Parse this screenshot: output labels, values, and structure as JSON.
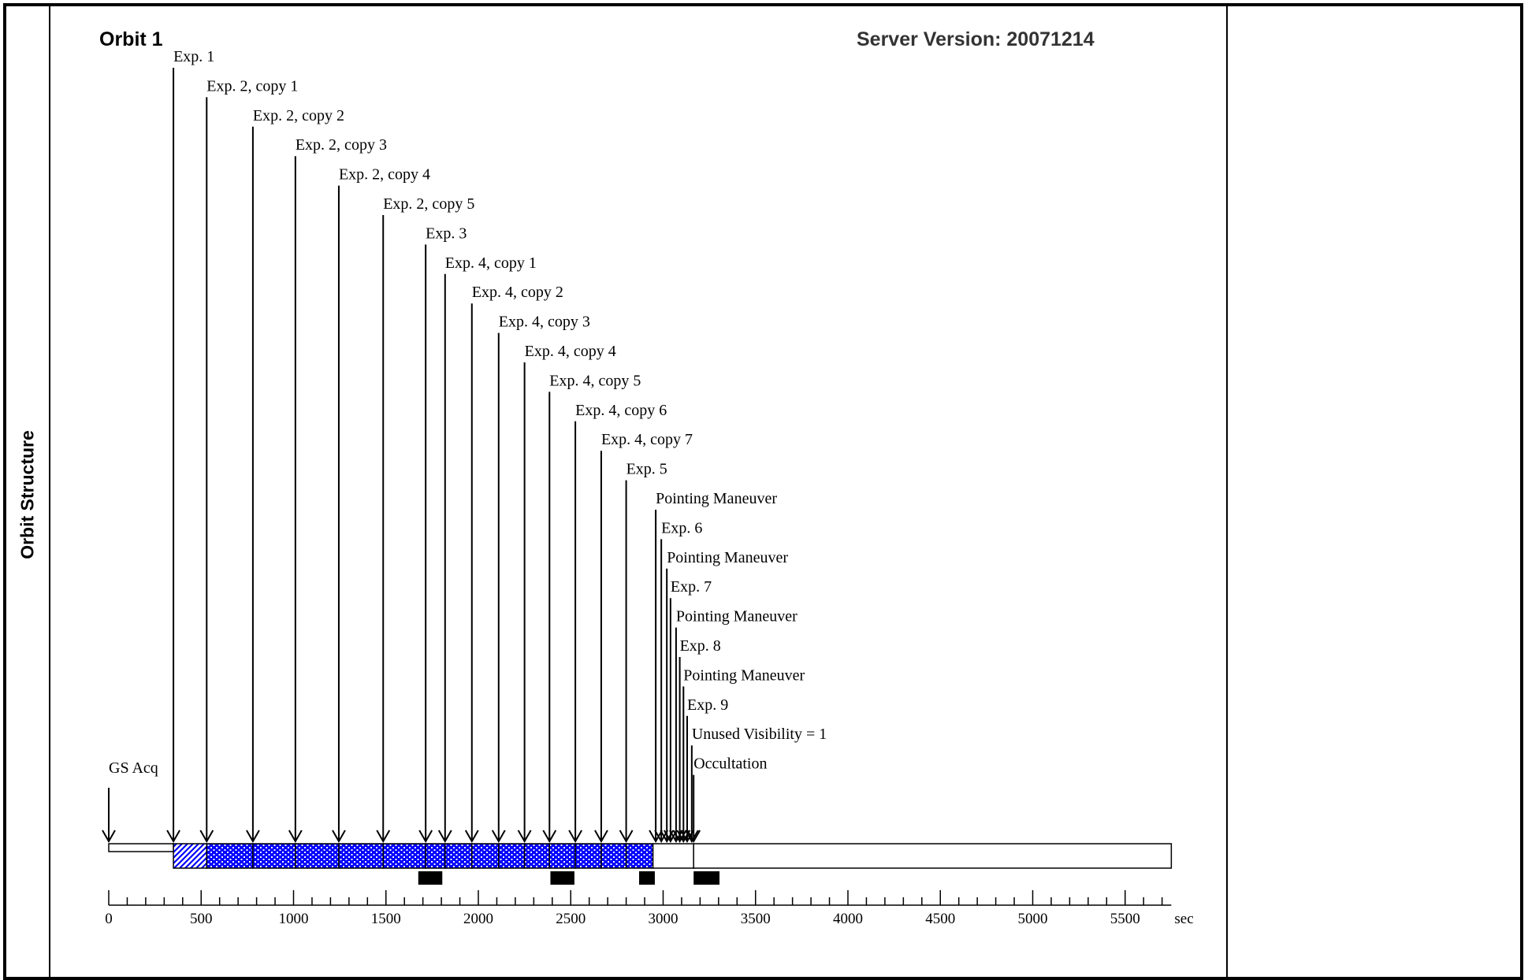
{
  "header": {
    "title": "Orbit 1",
    "server_version": "Server Version: 20071214"
  },
  "side_label": "Orbit Structure",
  "axis": {
    "min": 0,
    "max": 5750,
    "unit": "sec",
    "ticks": [
      0,
      500,
      1000,
      1500,
      2000,
      2500,
      3000,
      3500,
      4000,
      4500,
      5000,
      5500
    ]
  },
  "orbit_end": 5750,
  "events": [
    {
      "label": "GS Acq",
      "t": 0
    },
    {
      "label": "Exp. 1",
      "t": 350
    },
    {
      "label": "Exp. 2, copy 1",
      "t": 530
    },
    {
      "label": "Exp. 2, copy 2",
      "t": 780
    },
    {
      "label": "Exp. 2, copy 3",
      "t": 1010
    },
    {
      "label": "Exp. 2, copy 4",
      "t": 1245
    },
    {
      "label": "Exp. 2, copy 5",
      "t": 1485
    },
    {
      "label": "Exp. 3",
      "t": 1715
    },
    {
      "label": "Exp. 4, copy 1",
      "t": 1820
    },
    {
      "label": "Exp. 4, copy 2",
      "t": 1965
    },
    {
      "label": "Exp. 4, copy 3",
      "t": 2110
    },
    {
      "label": "Exp. 4, copy 4",
      "t": 2250
    },
    {
      "label": "Exp. 4, copy 5",
      "t": 2385
    },
    {
      "label": "Exp. 4, copy 6",
      "t": 2525
    },
    {
      "label": "Exp. 4, copy 7",
      "t": 2665
    },
    {
      "label": "Exp. 5",
      "t": 2800
    },
    {
      "label": "Pointing Maneuver",
      "t": 2960
    },
    {
      "label": "Exp. 6",
      "t": 2990
    },
    {
      "label": "Pointing Maneuver",
      "t": 3020
    },
    {
      "label": "Exp. 7",
      "t": 3040
    },
    {
      "label": "Pointing Maneuver",
      "t": 3070
    },
    {
      "label": "Exp. 8",
      "t": 3090
    },
    {
      "label": "Pointing Maneuver",
      "t": 3110
    },
    {
      "label": "Exp. 9",
      "t": 3130
    },
    {
      "label": "Unused Visibility = 1",
      "t": 3155
    },
    {
      "label": "Occultation",
      "t": 3165
    }
  ],
  "segments": [
    {
      "start": 350,
      "end": 530,
      "pattern": "hatch"
    },
    {
      "start": 530,
      "end": 780,
      "pattern": "dots"
    },
    {
      "start": 780,
      "end": 1010,
      "pattern": "dots"
    },
    {
      "start": 1010,
      "end": 1245,
      "pattern": "dots"
    },
    {
      "start": 1245,
      "end": 1485,
      "pattern": "dots"
    },
    {
      "start": 1485,
      "end": 1715,
      "pattern": "dots"
    },
    {
      "start": 1715,
      "end": 1820,
      "pattern": "dots"
    },
    {
      "start": 1820,
      "end": 1965,
      "pattern": "dots"
    },
    {
      "start": 1965,
      "end": 2110,
      "pattern": "dots"
    },
    {
      "start": 2110,
      "end": 2250,
      "pattern": "dots"
    },
    {
      "start": 2250,
      "end": 2385,
      "pattern": "dots"
    },
    {
      "start": 2385,
      "end": 2525,
      "pattern": "dots"
    },
    {
      "start": 2525,
      "end": 2665,
      "pattern": "dots"
    },
    {
      "start": 2665,
      "end": 2800,
      "pattern": "dots"
    },
    {
      "start": 2800,
      "end": 2945,
      "pattern": "dots"
    }
  ],
  "black_bars": [
    {
      "start": 1675,
      "end": 1805
    },
    {
      "start": 2390,
      "end": 2520
    },
    {
      "start": 2870,
      "end": 2955
    },
    {
      "start": 3165,
      "end": 3305
    }
  ],
  "colors": {
    "fill_blue": "#0000ff",
    "line": "#000000"
  }
}
